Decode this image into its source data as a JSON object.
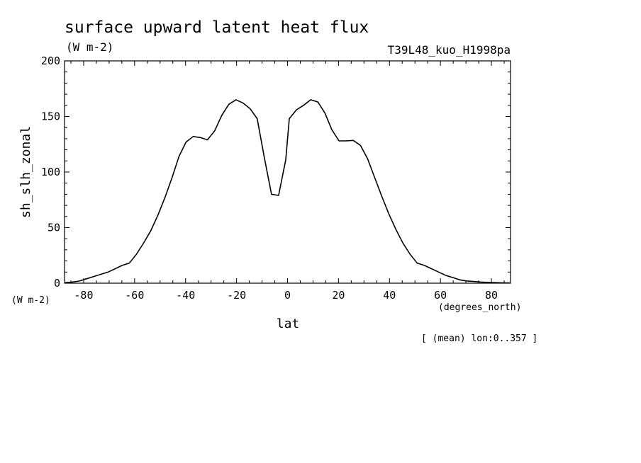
{
  "chart_data": {
    "type": "line",
    "title": "surface upward latent heat flux",
    "units": "(W m-2)",
    "experiment": "T39L48_kuo_H1998pa",
    "xlabel": "lat",
    "xunits": "(degrees_north)",
    "ylabel": "sh_slh_zonal",
    "yunits": "(W m-2)",
    "note": "[ (mean) lon:0..357 ]",
    "xlim": [
      -87.5,
      87.5
    ],
    "ylim": [
      0,
      200
    ],
    "xticks": [
      -80,
      -60,
      -40,
      -20,
      0,
      20,
      40,
      60,
      80
    ],
    "xtick_labels": [
      "-80",
      "-60",
      "-40",
      "-20",
      "0",
      "20",
      "40",
      "60",
      "80"
    ],
    "yticks": [
      0,
      50,
      100,
      150,
      200
    ],
    "ytick_labels": [
      "0",
      "50",
      "100",
      "150",
      "200"
    ],
    "grid": false,
    "series": [
      {
        "x": [
          -87.2,
          -84.4,
          -81.6,
          -78.8,
          -76.0,
          -73.2,
          -70.4,
          -67.6,
          -64.9,
          -62.1,
          -59.3,
          -56.5,
          -53.7,
          -50.9,
          -48.1,
          -45.3,
          -42.6,
          -39.8,
          -37.0,
          -34.2,
          -31.4,
          -28.6,
          -25.8,
          -23.0,
          -20.2,
          -17.4,
          -14.7,
          -11.9,
          -9.1,
          -6.3,
          -3.5,
          -0.7,
          0.7,
          3.5,
          6.3,
          9.1,
          11.9,
          14.7,
          17.4,
          20.2,
          23.0,
          25.8,
          28.6,
          31.4,
          34.2,
          37.0,
          39.8,
          42.6,
          45.3,
          48.1,
          50.9,
          53.7,
          56.5,
          59.3,
          62.1,
          64.9,
          67.6,
          70.4,
          73.2,
          76.0,
          78.8,
          81.6,
          84.4,
          87.2
        ],
        "y": [
          0.5,
          1.0,
          2.0,
          4.0,
          6.0,
          8.0,
          10.0,
          13.0,
          16.0,
          18.0,
          26.0,
          36.0,
          47.0,
          61.0,
          77.0,
          95.0,
          114.0,
          127.0,
          132.0,
          131.0,
          129.0,
          137.0,
          151.0,
          161.0,
          165.0,
          162.0,
          157.0,
          148.0,
          113.0,
          80.0,
          79.0,
          111.0,
          148.0,
          156.0,
          160.0,
          165.0,
          163.0,
          153.0,
          138.0,
          128.0,
          128.0,
          128.5,
          124.0,
          112.0,
          95.0,
          78.0,
          62.0,
          48.0,
          36.0,
          26.0,
          18.0,
          16.0,
          13.0,
          10.0,
          7.0,
          5.0,
          3.0,
          2.0,
          1.5,
          1.0,
          0.7,
          0.5,
          0.3,
          0.2
        ]
      }
    ]
  }
}
